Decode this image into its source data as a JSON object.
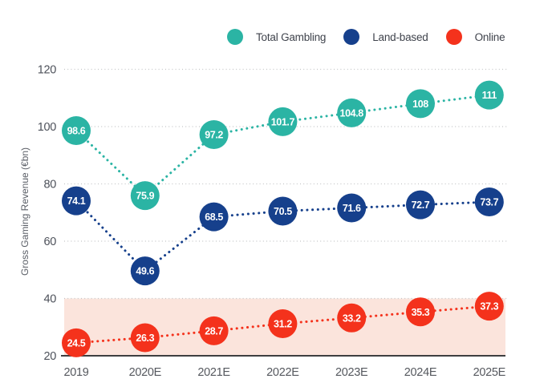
{
  "chart_data": {
    "type": "line",
    "categories": [
      "2019",
      "2020E",
      "2021E",
      "2022E",
      "2023E",
      "2024E",
      "2025E"
    ],
    "series": [
      {
        "name": "Total Gambling",
        "color": "#2bb4a4",
        "values": [
          98.6,
          75.9,
          97.2,
          101.7,
          104.8,
          108,
          111
        ]
      },
      {
        "name": "Land-based",
        "color": "#16408c",
        "values": [
          74.1,
          49.6,
          68.5,
          70.5,
          71.6,
          72.7,
          73.7
        ]
      },
      {
        "name": "Online",
        "color": "#f4321c",
        "values": [
          24.5,
          26.3,
          28.7,
          31.2,
          33.2,
          35.3,
          37.3
        ]
      }
    ],
    "title": "",
    "xlabel": "",
    "ylabel": "Gross Gaming Revenue (€bn)",
    "yticks": [
      20,
      40,
      60,
      80,
      100,
      120
    ],
    "ylim": [
      20,
      120
    ],
    "grid": "horizontal-dotted",
    "line_style": "dotted",
    "marker": "filled-circle-with-value-label",
    "legend_position": "top",
    "highlight_band": {
      "applies_to": "Online",
      "from": 20,
      "to": 40,
      "color": "#fbe4dc"
    }
  },
  "colors": {
    "background": "#ffffff",
    "gridline": "#c4c5c7",
    "axis_line": "#3e3e40",
    "tick_text": "#4d515a",
    "legend_text": "#3f434c",
    "value_label_text": "#ffffff"
  }
}
